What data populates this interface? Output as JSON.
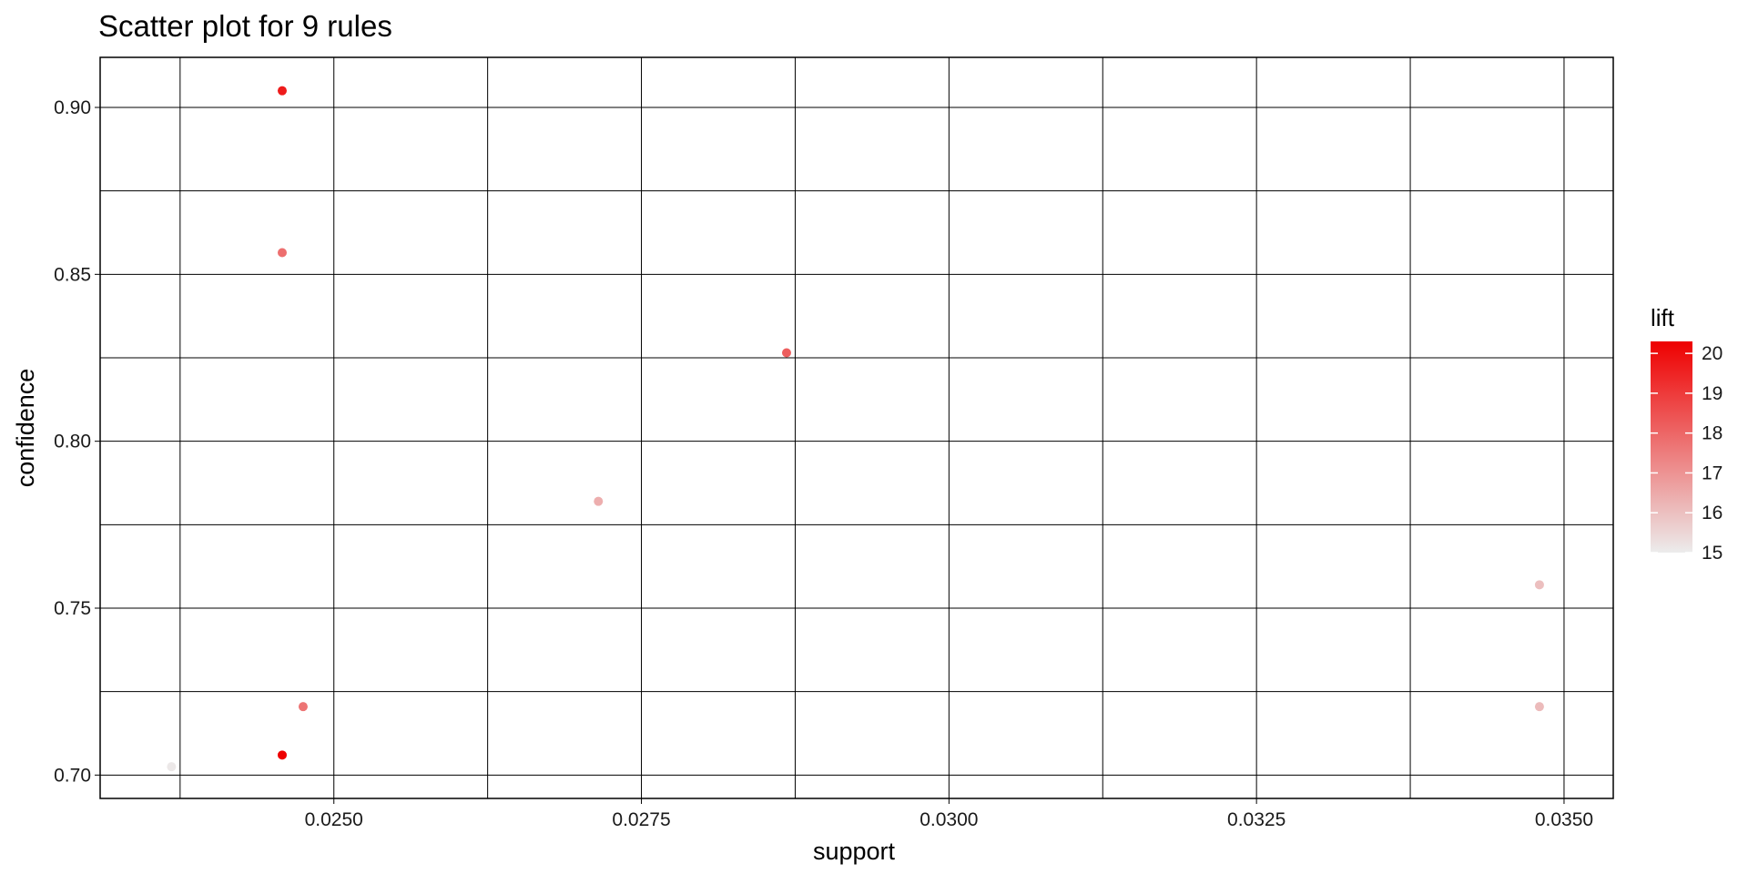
{
  "chart_data": {
    "type": "scatter",
    "title": "Scatter plot for 9 rules",
    "xlabel": "support",
    "ylabel": "confidence",
    "xlim": [
      0.0231,
      0.0354
    ],
    "ylim": [
      0.693,
      0.915
    ],
    "x_ticks": [
      0.025,
      0.0275,
      0.03,
      0.0325,
      0.035
    ],
    "x_tick_labels": [
      "0.0250",
      "0.0275",
      "0.0300",
      "0.0325",
      "0.0350"
    ],
    "y_ticks": [
      0.7,
      0.75,
      0.8,
      0.85,
      0.9
    ],
    "y_tick_labels": [
      "0.70",
      "0.75",
      "0.80",
      "0.85",
      "0.90"
    ],
    "grid": true,
    "points": [
      {
        "support": 0.02458,
        "confidence": 0.905,
        "lift": 19.7
      },
      {
        "support": 0.02458,
        "confidence": 0.8565,
        "lift": 17.8
      },
      {
        "support": 0.02868,
        "confidence": 0.8265,
        "lift": 18.2
      },
      {
        "support": 0.02715,
        "confidence": 0.782,
        "lift": 16.4
      },
      {
        "support": 0.0348,
        "confidence": 0.757,
        "lift": 16.0
      },
      {
        "support": 0.02475,
        "confidence": 0.7205,
        "lift": 17.7
      },
      {
        "support": 0.0348,
        "confidence": 0.7205,
        "lift": 16.1
      },
      {
        "support": 0.02458,
        "confidence": 0.706,
        "lift": 20.3
      },
      {
        "support": 0.02368,
        "confidence": 0.7025,
        "lift": 15.1
      }
    ],
    "color_scale": {
      "title": "lift",
      "min": 15,
      "max": 20.3,
      "ticks": [
        15,
        16,
        17,
        18,
        19,
        20
      ],
      "tick_labels": [
        "15",
        "16",
        "17",
        "18",
        "19",
        "20"
      ],
      "low_color": "#ececec",
      "high_color": "#ee0000",
      "legend_position": "right"
    }
  }
}
